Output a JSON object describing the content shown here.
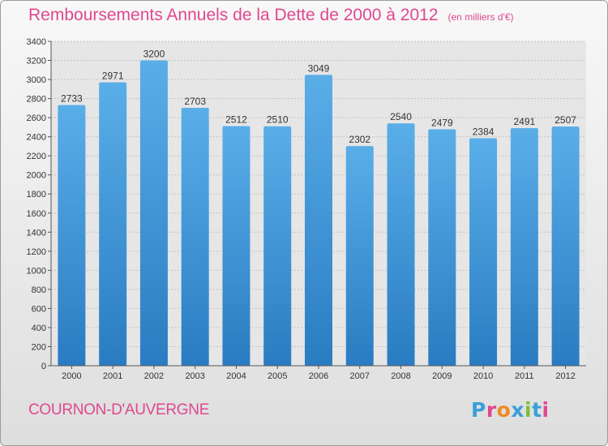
{
  "header": {
    "title": "Remboursements Annuels de la Dette de 2000 à 2012",
    "unit": "(en milliers d'€)"
  },
  "footer": {
    "city": "COURNON-D'AUVERGNE",
    "logo": "Proxiti",
    "logo_colors": [
      "#3aa0d8",
      "#e0488f",
      "#f08a24",
      "#3aa0d8",
      "#7bbf3a",
      "#3aa0d8",
      "#e0488f"
    ]
  },
  "colors": {
    "bar_top": "#5aaee8",
    "bar_bottom": "#2a7cc2",
    "title": "#e0488f"
  },
  "chart_data": {
    "type": "bar",
    "title": "Remboursements Annuels de la Dette de 2000 à 2012",
    "xlabel": "",
    "ylabel": "",
    "categories": [
      "2000",
      "2001",
      "2002",
      "2003",
      "2004",
      "2005",
      "2006",
      "2007",
      "2008",
      "2009",
      "2010",
      "2011",
      "2012"
    ],
    "values": [
      2733,
      2971,
      3200,
      2703,
      2512,
      2510,
      3049,
      2302,
      2540,
      2479,
      2384,
      2491,
      2507
    ],
    "ylim": [
      0,
      3400
    ],
    "yticks": [
      0,
      200,
      400,
      600,
      800,
      1000,
      1200,
      1400,
      1600,
      1800,
      2000,
      2200,
      2400,
      2600,
      2800,
      3000,
      3200,
      3400
    ],
    "grid": true,
    "legend": "none"
  }
}
